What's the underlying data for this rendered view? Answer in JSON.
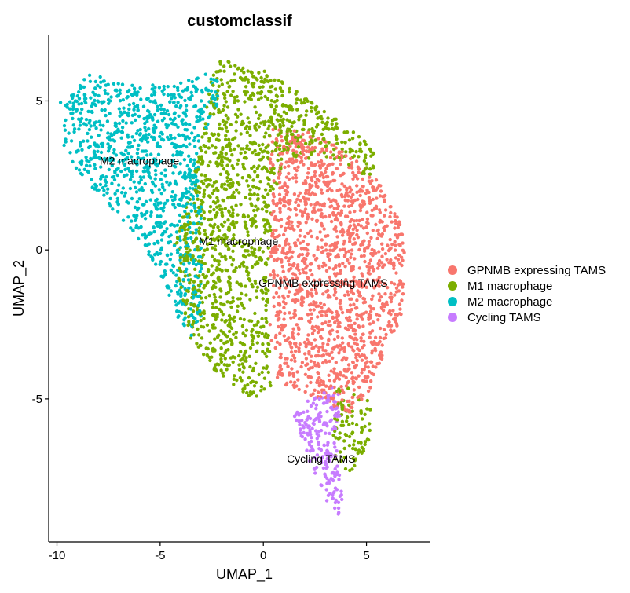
{
  "chart_data": {
    "type": "scatter",
    "title": "customclassif",
    "xlabel": "UMAP_1",
    "ylabel": "UMAP_2",
    "xlim": [
      -10.4,
      8.1
    ],
    "ylim": [
      -9.8,
      7.2
    ],
    "x_ticks": [
      -10,
      -5,
      0,
      5
    ],
    "x_tick_labels": [
      "-10",
      "-5",
      "0",
      "5"
    ],
    "y_ticks": [
      -5,
      0,
      5
    ],
    "y_tick_labels": [
      "-5",
      "0",
      "5"
    ],
    "grid": false,
    "legend_position": "right",
    "series": [
      {
        "name": "GPNMB expressing TAMS",
        "color": "#F8766D",
        "center": [
          2.9,
          -1.1
        ],
        "cluster_label": "GPNMB expressing TAMS",
        "region": [
          [
            0.2,
            4.1
          ],
          [
            2.3,
            4.0
          ],
          [
            4.2,
            3.2
          ],
          [
            5.6,
            2.3
          ],
          [
            6.6,
            1.0
          ],
          [
            7.0,
            -0.3
          ],
          [
            6.7,
            -2.2
          ],
          [
            5.8,
            -3.6
          ],
          [
            5.3,
            -4.6
          ],
          [
            4.2,
            -5.5
          ],
          [
            2.6,
            -5.0
          ],
          [
            0.6,
            -4.4
          ],
          [
            0.3,
            -2.5
          ],
          [
            0.4,
            1.0
          ]
        ]
      },
      {
        "name": "M1 macrophage",
        "color": "#7CAE00",
        "center": [
          -1.2,
          0.3
        ],
        "cluster_label": "M1 macrophage",
        "region": [
          [
            -2.2,
            6.4
          ],
          [
            0.0,
            6.1
          ],
          [
            2.3,
            5.0
          ],
          [
            4.3,
            4.0
          ],
          [
            5.4,
            3.4
          ],
          [
            5.3,
            2.4
          ],
          [
            3.5,
            2.9
          ],
          [
            1.0,
            3.2
          ],
          [
            0.4,
            1.2
          ],
          [
            0.2,
            -2.4
          ],
          [
            0.5,
            -4.5
          ],
          [
            -0.5,
            -5.0
          ],
          [
            -2.3,
            -4.1
          ],
          [
            -3.5,
            -3.0
          ],
          [
            -4.0,
            -1.5
          ],
          [
            -4.4,
            0.0
          ],
          [
            -3.6,
            1.8
          ],
          [
            -3.0,
            3.8
          ],
          [
            -2.6,
            5.5
          ]
        ],
        "extra_region": [
          [
            3.6,
            -4.4
          ],
          [
            5.2,
            -5.0
          ],
          [
            5.2,
            -6.4
          ],
          [
            4.2,
            -7.5
          ],
          [
            3.4,
            -7.0
          ],
          [
            3.4,
            -5.6
          ]
        ]
      },
      {
        "name": "M2 macrophage",
        "color": "#00BFC4",
        "center": [
          -6.0,
          3.0
        ],
        "cluster_label": "M2 macrophage",
        "region": [
          [
            -9.9,
            4.9
          ],
          [
            -8.4,
            5.9
          ],
          [
            -6.5,
            5.6
          ],
          [
            -4.5,
            5.5
          ],
          [
            -2.4,
            6.0
          ],
          [
            -2.0,
            5.2
          ],
          [
            -2.8,
            4.0
          ],
          [
            -3.2,
            2.6
          ],
          [
            -3.0,
            1.4
          ],
          [
            -3.0,
            -1.0
          ],
          [
            -3.0,
            -2.5
          ],
          [
            -3.5,
            -2.9
          ],
          [
            -4.2,
            -2.2
          ],
          [
            -5.0,
            -0.8
          ],
          [
            -6.8,
            1.0
          ],
          [
            -8.8,
            2.4
          ],
          [
            -9.7,
            3.5
          ]
        ]
      },
      {
        "name": "Cycling TAMS",
        "color": "#C77CFF",
        "center": [
          2.8,
          -7.0
        ],
        "cluster_label": "Cycling TAMS",
        "region": [
          [
            1.6,
            -5.3
          ],
          [
            3.6,
            -4.5
          ],
          [
            3.7,
            -5.6
          ],
          [
            3.6,
            -7.0
          ],
          [
            3.9,
            -8.6
          ],
          [
            3.6,
            -9.0
          ],
          [
            2.7,
            -8.0
          ],
          [
            2.0,
            -6.6
          ],
          [
            1.4,
            -6.0
          ]
        ]
      }
    ],
    "legend": [
      {
        "label": "GPNMB expressing TAMS",
        "color": "#F8766D"
      },
      {
        "label": "M1 macrophage",
        "color": "#7CAE00"
      },
      {
        "label": "M2 macrophage",
        "color": "#00BFC4"
      },
      {
        "label": "Cycling TAMS",
        "color": "#C77CFF"
      }
    ]
  }
}
